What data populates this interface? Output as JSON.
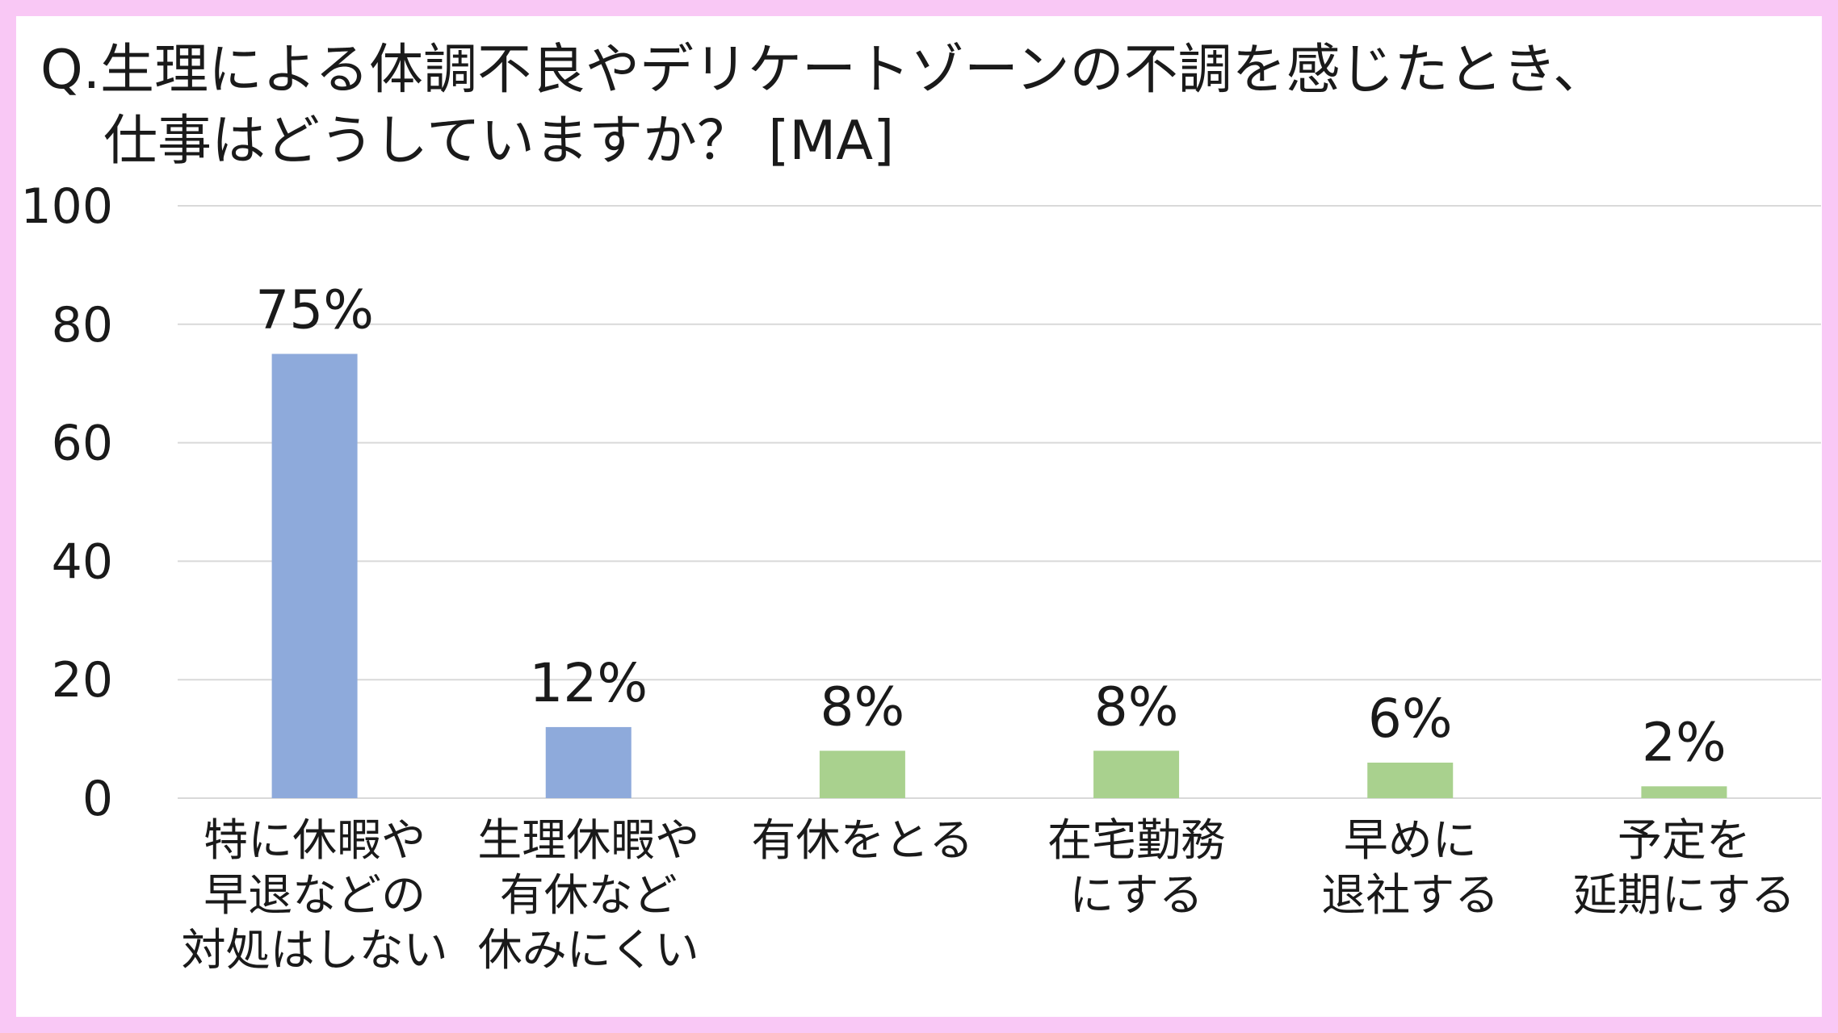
{
  "title": {
    "line1": "Q.生理による体調不良やデリケートゾーンの不調を感じたとき、",
    "line2": "仕事はどうしていますか？ [MA]"
  },
  "colors": {
    "frame": "#f9c8f5",
    "bar_blue": "#8eaadb",
    "bar_green": "#a9d18e"
  },
  "chart_data": {
    "type": "bar",
    "title": "Q.生理による体調不良やデリケートゾーンの不調を感じたとき、仕事はどうしていますか？ [MA]",
    "categories": [
      "特に休暇や早退などの対処はしない",
      "生理休暇や有休など休みにくい",
      "有休をとる",
      "在宅勤務にする",
      "早めに退社する",
      "予定を延期にする"
    ],
    "category_lines": [
      [
        "特に休暇や",
        "早退などの",
        "対処はしない"
      ],
      [
        "生理休暇や",
        "有休など",
        "休みにくい"
      ],
      [
        "有休をとる"
      ],
      [
        "在宅勤務",
        "にする"
      ],
      [
        "早めに",
        "退社する"
      ],
      [
        "予定を",
        "延期にする"
      ]
    ],
    "values": [
      75,
      12,
      8,
      8,
      6,
      2
    ],
    "value_labels": [
      "75%",
      "12%",
      "8%",
      "8%",
      "6%",
      "2%"
    ],
    "bar_colors": [
      "#8eaadb",
      "#8eaadb",
      "#a9d18e",
      "#a9d18e",
      "#a9d18e",
      "#a9d18e"
    ],
    "ylim": [
      0,
      100
    ],
    "yticks": [
      0,
      20,
      40,
      60,
      80,
      100
    ],
    "grid": true,
    "legend": "none",
    "xlabel": "",
    "ylabel": ""
  }
}
